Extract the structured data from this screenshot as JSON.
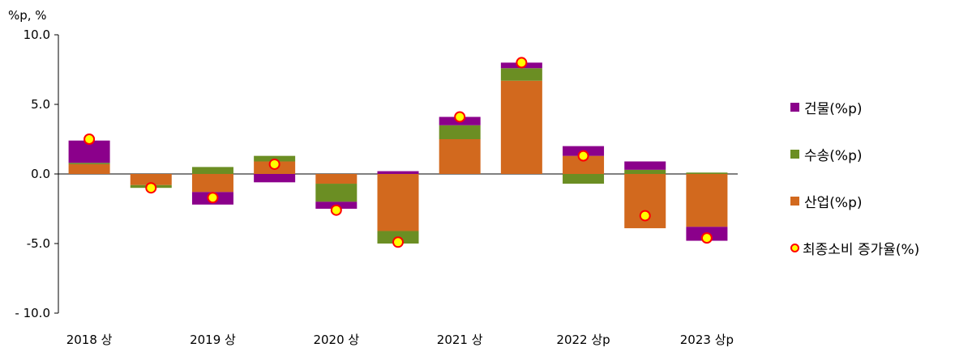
{
  "chart_data": {
    "type": "bar",
    "stacked": true,
    "unit_label": "%p, %",
    "ylim": [
      -10,
      10
    ],
    "yticks": [
      10,
      5,
      0,
      -5,
      -10
    ],
    "ytick_labels": [
      "10.0",
      "5.0",
      "0.0",
      "-5.0",
      "- 10.0"
    ],
    "categories": [
      "2018 상",
      "",
      "2019 상",
      "",
      "2020 상",
      "",
      "2021 상",
      "",
      "2022 상p",
      "",
      "2023 상p"
    ],
    "series": [
      {
        "name": "산업(%p)",
        "color": "#d2691e",
        "values": [
          0.7,
          -0.8,
          -1.3,
          0.9,
          -0.7,
          -4.1,
          2.5,
          6.7,
          1.3,
          -3.9,
          -3.8
        ]
      },
      {
        "name": "수송(%p)",
        "color": "#6b8e23",
        "values": [
          0.1,
          -0.2,
          0.5,
          0.4,
          -1.3,
          -0.9,
          1.0,
          0.9,
          -0.7,
          0.3,
          0.1
        ]
      },
      {
        "name": "건물(%p)",
        "color": "#8b008b",
        "values": [
          1.6,
          0.0,
          -0.9,
          -0.6,
          -0.5,
          0.2,
          0.6,
          0.4,
          0.7,
          0.6,
          -1.0
        ]
      }
    ],
    "line": {
      "name": "최종소비 증가율(%)",
      "marker_fill": "#ffff00",
      "marker_edge": "#ff0000",
      "values": [
        2.5,
        -1.0,
        -1.7,
        0.7,
        -2.6,
        -4.9,
        4.1,
        8.0,
        1.3,
        -3.0,
        -4.6
      ]
    },
    "grid": false,
    "legend_position": "right"
  }
}
